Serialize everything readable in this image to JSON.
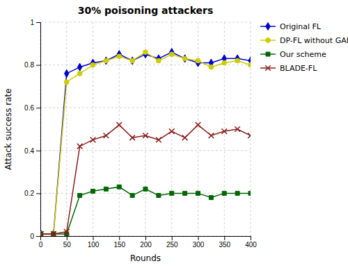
{
  "chart_data": {
    "type": "line",
    "title": "30% poisoning attackers",
    "xlabel": "Rounds",
    "ylabel": "Attack success rate",
    "x": [
      1,
      25,
      50,
      75,
      100,
      125,
      150,
      175,
      200,
      225,
      250,
      275,
      300,
      325,
      350,
      375,
      400
    ],
    "xlim": [
      0,
      400
    ],
    "xticks": [
      0,
      50,
      100,
      150,
      200,
      250,
      300,
      350,
      400
    ],
    "ylim": [
      0.0,
      1.0
    ],
    "yticks": [
      0.0,
      0.2,
      0.4,
      0.6,
      0.8,
      1.0
    ],
    "grid": true,
    "legend": "right",
    "series": [
      {
        "name": "Original FL",
        "color": "#0000cc",
        "marker": "diamond",
        "values": [
          0.01,
          0.01,
          0.76,
          0.79,
          0.81,
          0.82,
          0.85,
          0.82,
          0.85,
          0.83,
          0.86,
          0.83,
          0.81,
          0.81,
          0.83,
          0.83,
          0.82
        ]
      },
      {
        "name": "DP-FL without GAN",
        "color": "#cccc00",
        "marker": "circle",
        "values": [
          0.01,
          0.01,
          0.72,
          0.76,
          0.8,
          0.82,
          0.84,
          0.82,
          0.86,
          0.82,
          0.85,
          0.83,
          0.82,
          0.79,
          0.81,
          0.82,
          0.8
        ]
      },
      {
        "name": "Our scheme",
        "color": "#006600",
        "marker": "square",
        "values": [
          0.01,
          0.01,
          0.01,
          0.19,
          0.21,
          0.22,
          0.23,
          0.19,
          0.22,
          0.19,
          0.2,
          0.2,
          0.2,
          0.18,
          0.2,
          0.2,
          0.2
        ]
      },
      {
        "name": "BLADE-FL",
        "color": "#8b1a1a",
        "marker": "x",
        "values": [
          0.01,
          0.01,
          0.02,
          0.42,
          0.45,
          0.47,
          0.52,
          0.46,
          0.47,
          0.45,
          0.49,
          0.46,
          0.52,
          0.47,
          0.49,
          0.5,
          0.47
        ]
      }
    ]
  }
}
